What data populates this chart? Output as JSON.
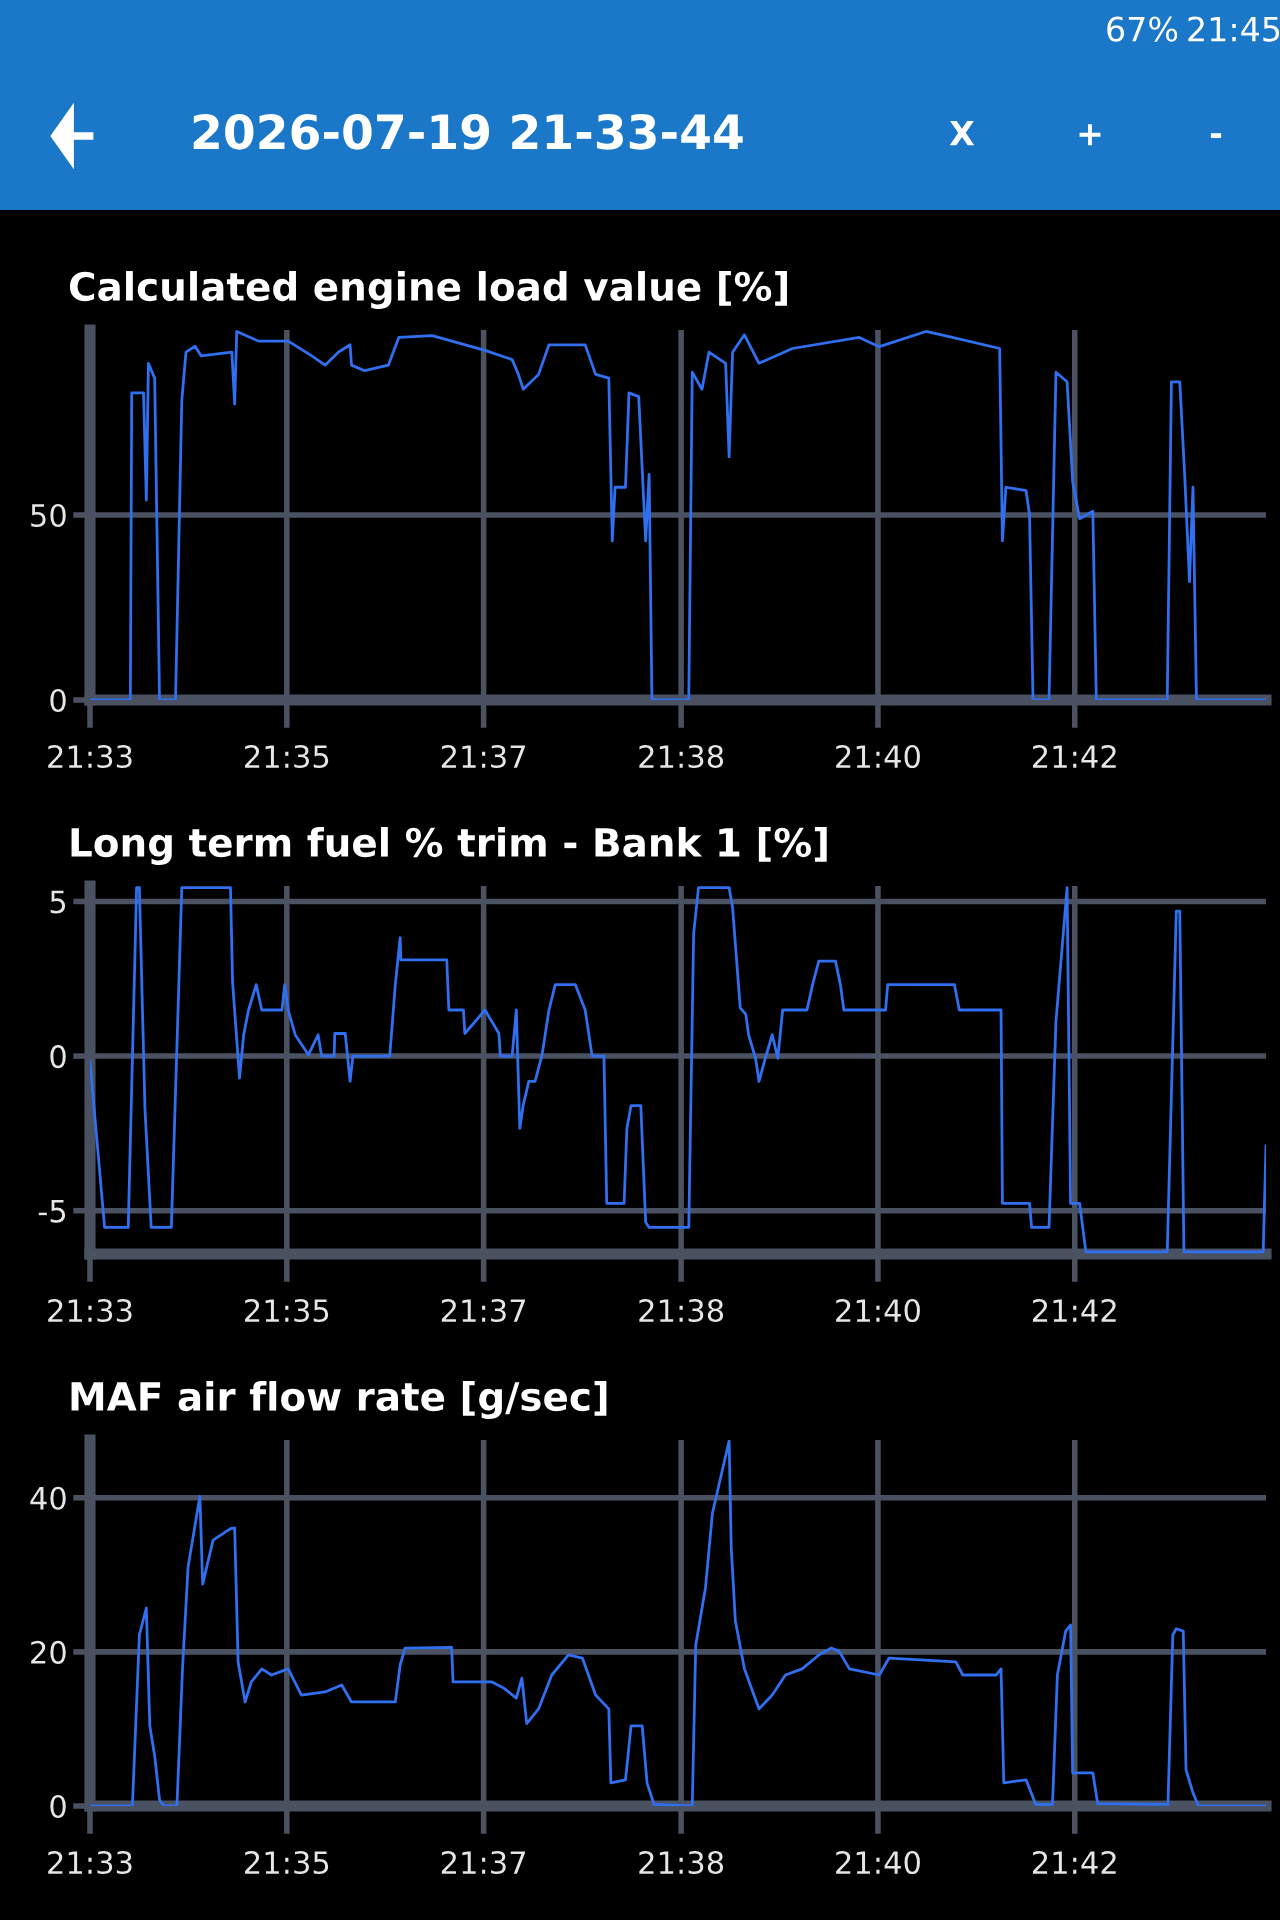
{
  "chart_data": [
    {
      "type": "line",
      "title": "Calculated engine load value [%]",
      "annotations": [
        "2026-07-19 21-33-44",
        "X",
        "+",
        "-",
        "67%",
        "21:45"
      ],
      "xlim": [
        21.5542,
        21.7233
      ],
      "ylim": [
        0,
        100
      ],
      "yticks": [
        0,
        50
      ],
      "grid": true,
      "xticks": [
        {
          "value": 21.5542,
          "label": "21:33"
        },
        {
          "value": 21.5825,
          "label": "21:35"
        },
        {
          "value": 21.6108,
          "label": "21:37"
        },
        {
          "value": 21.6392,
          "label": "21:38"
        },
        {
          "value": 21.6675,
          "label": "21:40"
        },
        {
          "value": 21.6958,
          "label": "21:42"
        }
      ],
      "x": [
        21.5542,
        21.56,
        21.5602,
        21.5619,
        21.5623,
        21.5626,
        21.5635,
        21.5642,
        21.5665,
        21.5674,
        21.568,
        21.5693,
        21.5702,
        21.5746,
        21.575,
        21.5753,
        21.5784,
        21.5827,
        21.5861,
        21.588,
        21.5899,
        21.5916,
        21.5918,
        21.5937,
        21.5971,
        21.5986,
        21.6034,
        21.611,
        21.6149,
        21.6158,
        21.6165,
        21.6187,
        21.6202,
        21.6254,
        21.6269,
        21.6288,
        21.6293,
        21.6297,
        21.6312,
        21.6317,
        21.6331,
        21.6341,
        21.6346,
        21.635,
        21.6403,
        21.6408,
        21.6422,
        21.6432,
        21.6456,
        21.6461,
        21.6466,
        21.6483,
        21.6504,
        21.6552,
        21.6648,
        21.6677,
        21.6744,
        21.6782,
        21.685,
        21.6854,
        21.6859,
        21.6888,
        21.6893,
        21.6898,
        21.6921,
        21.6931,
        21.6947,
        21.6955,
        21.6965,
        21.6984,
        21.6989,
        21.7091,
        21.7097,
        21.7109,
        21.7116,
        21.7123,
        21.7128,
        21.7133,
        21.7233
      ],
      "series": [
        {
          "color": "#2f6ff0",
          "values": [
            0,
            0,
            83,
            83,
            54,
            91,
            87,
            0,
            0,
            81,
            94,
            95.6,
            93,
            94,
            80,
            99.6,
            97,
            97,
            93,
            90.5,
            94,
            96,
            90.5,
            89,
            90.5,
            98,
            98.5,
            94.5,
            92,
            88,
            84,
            88,
            96,
            96,
            88,
            87,
            43,
            57.5,
            57.5,
            83,
            82,
            43,
            61,
            0,
            0,
            88.6,
            84,
            94,
            91,
            65.7,
            94,
            98.7,
            91,
            95,
            98,
            95.5,
            99.6,
            98,
            95,
            43,
            57.5,
            56.6,
            50,
            0,
            0,
            88.6,
            86,
            59,
            49,
            51,
            0,
            0,
            86,
            86,
            61,
            32,
            57.5,
            0,
            0
          ]
        }
      ]
    },
    {
      "type": "line",
      "title": "Long term fuel % trim - Bank 1 [%]",
      "xlim": [
        21.5542,
        21.7233
      ],
      "ylim": [
        -6.4,
        5.5
      ],
      "yticks": [
        -5,
        0,
        5
      ],
      "grid": true,
      "xticks": [
        {
          "value": 21.5542,
          "label": "21:33"
        },
        {
          "value": 21.5825,
          "label": "21:35"
        },
        {
          "value": 21.6108,
          "label": "21:37"
        },
        {
          "value": 21.6392,
          "label": "21:38"
        },
        {
          "value": 21.6675,
          "label": "21:40"
        },
        {
          "value": 21.6958,
          "label": "21:42"
        }
      ],
      "x": [
        21.5542,
        21.5563,
        21.5597,
        21.5609,
        21.5613,
        21.5621,
        21.563,
        21.5659,
        21.5674,
        21.5744,
        21.5747,
        21.5757,
        21.5763,
        21.577,
        21.5781,
        21.5789,
        21.5818,
        21.5822,
        21.5827,
        21.5837,
        21.5856,
        21.587,
        21.5875,
        21.5893,
        21.5894,
        21.5909,
        21.5916,
        21.592,
        21.5973,
        21.5981,
        21.5988,
        21.5989,
        21.6055,
        21.6058,
        21.6079,
        21.6081,
        21.611,
        21.613,
        21.6132,
        21.6149,
        21.6155,
        21.616,
        21.6165,
        21.6173,
        21.6182,
        21.6192,
        21.6202,
        21.6211,
        21.624,
        21.6254,
        21.6264,
        21.6281,
        21.6285,
        21.631,
        21.6314,
        21.632,
        21.6334,
        21.6341,
        21.6346,
        21.6403,
        21.641,
        21.6417,
        21.6461,
        21.6466,
        21.6477,
        21.6485,
        21.6489,
        21.6499,
        21.6504,
        21.6513,
        21.6523,
        21.6531,
        21.6538,
        21.6573,
        21.6581,
        21.659,
        21.6614,
        21.6621,
        21.6626,
        21.6686,
        21.6689,
        21.6785,
        21.6792,
        21.6852,
        21.6854,
        21.6893,
        21.6896,
        21.6921,
        21.6931,
        21.6947,
        21.6952,
        21.6965,
        21.6974,
        21.7091,
        21.7104,
        21.7109,
        21.7115,
        21.7229,
        21.7233
      ],
      "series": [
        {
          "color": "#2f6ff0",
          "values": [
            -0.17,
            -5.54,
            -5.54,
            5.45,
            5.45,
            -1.69,
            -5.54,
            -5.54,
            5.45,
            5.45,
            2.4,
            -0.71,
            0.69,
            1.49,
            2.31,
            1.49,
            1.49,
            2.31,
            1.49,
            0.69,
            0.04,
            0.69,
            0,
            0,
            0.73,
            0.73,
            -0.82,
            0,
            0,
            2.31,
            3.83,
            3.11,
            3.11,
            1.49,
            1.49,
            0.73,
            1.49,
            0.73,
            0,
            0,
            1.49,
            -2.34,
            -1.58,
            -0.82,
            -0.82,
            0.04,
            1.49,
            2.31,
            2.31,
            1.49,
            0,
            0,
            -4.76,
            -4.76,
            -2.34,
            -1.6,
            -1.6,
            -5.37,
            -5.54,
            -5.54,
            3.96,
            5.45,
            5.45,
            4.8,
            1.56,
            1.35,
            0.69,
            -0.07,
            -0.82,
            -0.07,
            0.69,
            -0.07,
            1.49,
            1.49,
            2.31,
            3.07,
            3.07,
            2.31,
            1.49,
            1.49,
            2.31,
            2.31,
            1.49,
            1.49,
            -4.76,
            -4.76,
            -5.54,
            -5.54,
            1.13,
            5.45,
            -4.76,
            -4.76,
            -6.33,
            -6.33,
            4.69,
            4.69,
            -6.33,
            -6.33,
            -2.9
          ]
        }
      ]
    },
    {
      "type": "line",
      "title": "MAF air flow rate [g/sec]",
      "xlim": [
        21.5542,
        21.7233
      ],
      "ylim": [
        0,
        47.5
      ],
      "yticks": [
        0,
        20,
        40
      ],
      "grid": true,
      "xticks": [
        {
          "value": 21.5542,
          "label": "21:33"
        },
        {
          "value": 21.5825,
          "label": "21:35"
        },
        {
          "value": 21.6108,
          "label": "21:37"
        },
        {
          "value": 21.6392,
          "label": "21:38"
        },
        {
          "value": 21.6675,
          "label": "21:40"
        },
        {
          "value": 21.6958,
          "label": "21:42"
        }
      ],
      "x": [
        21.5542,
        21.5603,
        21.5613,
        21.5623,
        21.5628,
        21.5635,
        21.5642,
        21.5648,
        21.5667,
        21.5675,
        21.5683,
        21.57,
        21.5704,
        21.5719,
        21.5744,
        21.575,
        21.5755,
        21.5765,
        21.5774,
        21.5789,
        21.5803,
        21.5827,
        21.5846,
        21.588,
        21.5904,
        21.5918,
        21.5981,
        21.5988,
        21.5995,
        21.6062,
        21.6064,
        21.612,
        21.6137,
        21.6155,
        21.6163,
        21.617,
        21.6187,
        21.6206,
        21.623,
        21.625,
        21.6269,
        21.6288,
        21.6291,
        21.6312,
        21.632,
        21.6336,
        21.6343,
        21.6353,
        21.6408,
        21.6413,
        21.6427,
        21.6437,
        21.6461,
        21.6464,
        21.647,
        21.6483,
        21.6504,
        21.6523,
        21.6542,
        21.6566,
        21.659,
        21.6608,
        21.6619,
        21.6634,
        21.6677,
        21.6691,
        21.6787,
        21.6797,
        21.6845,
        21.6852,
        21.6856,
        21.6888,
        21.6902,
        21.6926,
        21.6933,
        21.6945,
        21.6952,
        21.6955,
        21.6984,
        21.6991,
        21.7092,
        21.7099,
        21.7104,
        21.7114,
        21.7118,
        21.7128,
        21.7136,
        21.7233
      ],
      "series": [
        {
          "color": "#2f6ff0",
          "values": [
            0,
            0,
            22.2,
            25.7,
            10.4,
            6.5,
            0.8,
            0,
            0,
            17.8,
            31.0,
            40.2,
            28.8,
            34.5,
            36.0,
            36.1,
            18.7,
            13.5,
            16.1,
            17.8,
            17.0,
            17.8,
            14.4,
            14.8,
            15.7,
            13.5,
            13.5,
            18.3,
            20.5,
            20.6,
            16.1,
            16.1,
            15.3,
            14.0,
            16.6,
            10.7,
            12.6,
            17.0,
            19.6,
            19.2,
            14.4,
            12.6,
            3.0,
            3.4,
            10.4,
            10.4,
            3.0,
            0.2,
            0,
            20.9,
            28.3,
            38.0,
            47.4,
            33.6,
            24.0,
            17.8,
            12.6,
            14.4,
            17.0,
            17.8,
            19.6,
            20.5,
            20.1,
            17.8,
            17.0,
            19.2,
            18.7,
            17.0,
            17.0,
            17.8,
            3.0,
            3.4,
            0.2,
            0.2,
            17.0,
            22.7,
            23.5,
            4.3,
            4.3,
            0.3,
            0.2,
            22.2,
            23.0,
            22.7,
            4.7,
            1.7,
            0,
            0
          ]
        }
      ]
    }
  ]
}
